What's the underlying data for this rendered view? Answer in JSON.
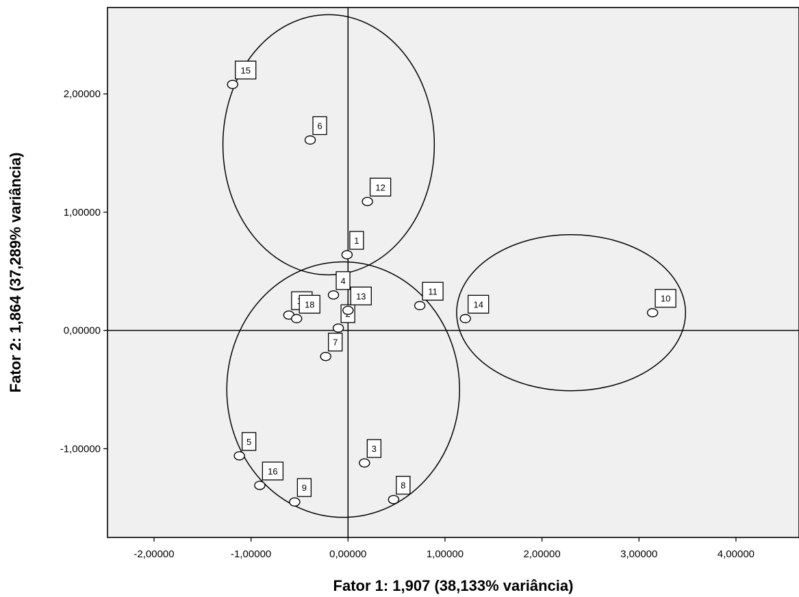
{
  "chart_data": {
    "type": "scatter",
    "xlabel": "Fator 1: 1,907 (38,133% variância)",
    "ylabel": "Fator 2: 1,864 (37,289% variância)",
    "xlim": [
      -2.48,
      4.65
    ],
    "ylim": [
      -1.75,
      2.73
    ],
    "xticks": [
      {
        "v": -2,
        "label": "-2,00000"
      },
      {
        "v": -1,
        "label": "-1,00000"
      },
      {
        "v": 0,
        "label": "0,00000"
      },
      {
        "v": 1,
        "label": "1,00000"
      },
      {
        "v": 2,
        "label": "2,00000"
      },
      {
        "v": 3,
        "label": "3,00000"
      },
      {
        "v": 4,
        "label": "4,00000"
      }
    ],
    "yticks": [
      {
        "v": -1,
        "label": "-1,00000"
      },
      {
        "v": 0,
        "label": "0,00000"
      },
      {
        "v": 1,
        "label": "1,00000"
      },
      {
        "v": 2,
        "label": "2,00000"
      }
    ],
    "reference_lines": {
      "x": 0,
      "y": 0
    },
    "points": [
      {
        "label": "1",
        "x": -0.01,
        "y": 0.64
      },
      {
        "label": "2",
        "x": -0.1,
        "y": 0.02
      },
      {
        "label": "3",
        "x": 0.17,
        "y": -1.12
      },
      {
        "label": "4",
        "x": -0.15,
        "y": 0.3
      },
      {
        "label": "5",
        "x": -1.12,
        "y": -1.06
      },
      {
        "label": "6",
        "x": -0.39,
        "y": 1.61
      },
      {
        "label": "7",
        "x": -0.23,
        "y": -0.22
      },
      {
        "label": "8",
        "x": 0.47,
        "y": -1.43
      },
      {
        "label": "9",
        "x": -0.55,
        "y": -1.45
      },
      {
        "label": "10",
        "x": 3.14,
        "y": 0.15
      },
      {
        "label": "11",
        "x": 0.74,
        "y": 0.21
      },
      {
        "label": "12",
        "x": 0.2,
        "y": 1.09
      },
      {
        "label": "13",
        "x": 0.0,
        "y": 0.17
      },
      {
        "label": "14",
        "x": 1.21,
        "y": 0.1
      },
      {
        "label": "15",
        "x": -1.19,
        "y": 2.08
      },
      {
        "label": "16",
        "x": -0.91,
        "y": -1.31
      },
      {
        "label": "17",
        "x": -0.61,
        "y": 0.13
      },
      {
        "label": "18",
        "x": -0.53,
        "y": 0.1
      }
    ],
    "clusters": [
      {
        "members": [
          "15",
          "6",
          "12",
          "1"
        ],
        "cx": -0.2,
        "cy": 1.57,
        "rx": 1.09,
        "ry": 1.1
      },
      {
        "members": [
          "2",
          "3",
          "4",
          "5",
          "7",
          "8",
          "9",
          "11",
          "13",
          "16",
          "17",
          "18"
        ],
        "cx": -0.05,
        "cy": -0.5,
        "rx": 1.2,
        "ry": 1.08
      },
      {
        "members": [
          "10",
          "14"
        ],
        "cx": 2.3,
        "cy": 0.15,
        "rx": 1.18,
        "ry": 0.66
      }
    ],
    "grid": false,
    "legend": "none"
  }
}
